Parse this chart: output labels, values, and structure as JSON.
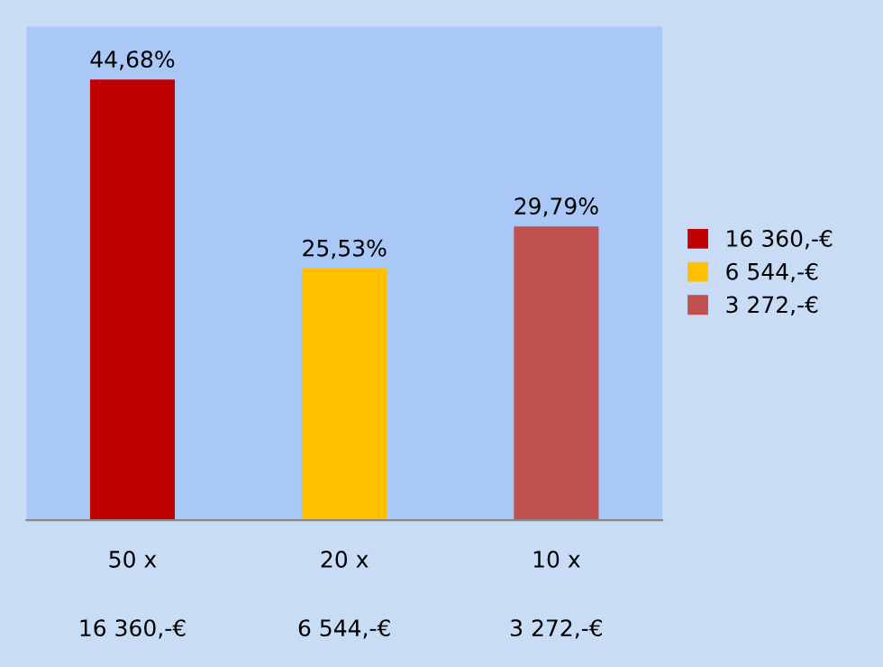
{
  "chart_data": {
    "type": "bar",
    "categories": [
      "50 x",
      "20 x",
      "10 x"
    ],
    "series": [
      {
        "name": "16 360,-€",
        "color": "#c00000",
        "values": [
          44.68,
          null,
          null
        ],
        "value_labels": [
          "44,68%",
          null,
          null
        ]
      },
      {
        "name": "6 544,-€",
        "color": "#ffc000",
        "values": [
          null,
          25.53,
          null
        ],
        "value_labels": [
          null,
          "25,53%",
          null
        ]
      },
      {
        "name": "3 272,-€",
        "color": "#c0504d",
        "values": [
          null,
          null,
          29.79
        ],
        "value_labels": [
          null,
          null,
          "29,79%"
        ]
      }
    ],
    "legend": "right",
    "grid": false
  }
}
